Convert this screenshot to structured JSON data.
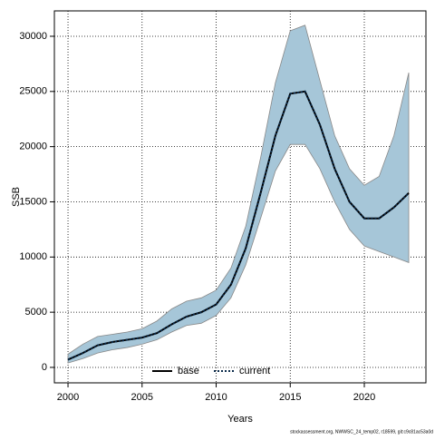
{
  "chart_data": {
    "type": "line",
    "xlabel": "Years",
    "ylabel": "SSB",
    "footnote": "stockassessment.org, NWWSC_24_temp02, r18599, git:c9c81ac53a0d",
    "x": [
      2000,
      2001,
      2002,
      2003,
      2004,
      2005,
      2006,
      2007,
      2008,
      2009,
      2010,
      2011,
      2012,
      2013,
      2014,
      2015,
      2016,
      2017,
      2018,
      2019,
      2020,
      2021,
      2022,
      2023
    ],
    "series": [
      {
        "name": "base",
        "color": "#000000",
        "dash": false,
        "values": [
          700,
          1300,
          2000,
          2300,
          2500,
          2700,
          3100,
          3900,
          4600,
          5000,
          5700,
          7500,
          10800,
          15800,
          21000,
          24800,
          25000,
          22000,
          18000,
          15000,
          13500,
          13500,
          14500,
          15800
        ]
      },
      {
        "name": "current",
        "color": "#0a2a4a",
        "dash": true,
        "values": [
          700,
          1300,
          2000,
          2300,
          2500,
          2700,
          3100,
          3900,
          4600,
          5000,
          5700,
          7500,
          10800,
          15800,
          21000,
          24800,
          25000,
          22000,
          18000,
          15000,
          13500,
          13500,
          14500,
          15800
        ]
      }
    ],
    "band": {
      "color": "#a6c6d8",
      "upper": [
        1200,
        2100,
        2800,
        3000,
        3200,
        3500,
        4200,
        5300,
        6000,
        6300,
        7000,
        9000,
        12800,
        19000,
        25800,
        30500,
        31000,
        26000,
        21000,
        18000,
        16500,
        17300,
        21000,
        26700
      ],
      "lower": [
        400,
        800,
        1300,
        1600,
        1800,
        2100,
        2500,
        3200,
        3800,
        4000,
        4700,
        6300,
        9300,
        13500,
        17800,
        20200,
        20200,
        18000,
        15000,
        12500,
        11000,
        10500,
        10000,
        9500
      ]
    },
    "xlim": [
      1999.08,
      2024.16
    ],
    "xticks": [
      2000,
      2005,
      2010,
      2015,
      2020
    ],
    "ylim": [
      -1400,
      32300
    ],
    "yticks": [
      0,
      5000,
      10000,
      15000,
      20000,
      25000,
      30000
    ],
    "grid": true,
    "legend": "bottom"
  }
}
